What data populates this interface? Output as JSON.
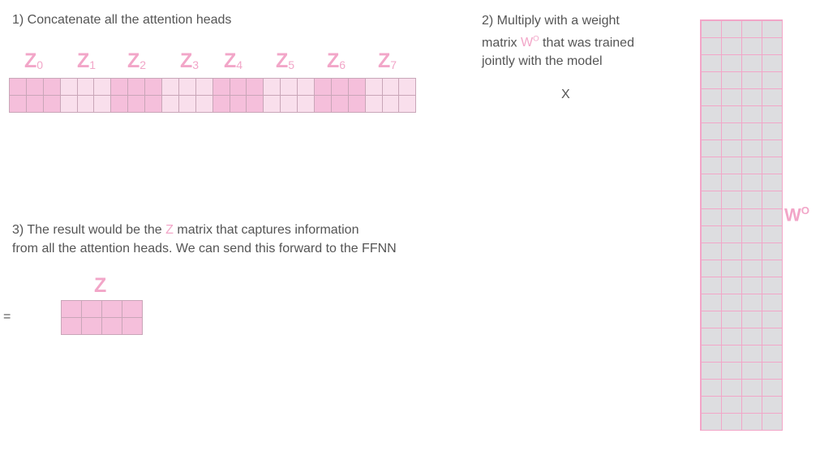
{
  "step1": {
    "text": "1) Concatenate all the attention heads"
  },
  "step2": {
    "line1": "2) Multiply with a weight",
    "line2_before": "matrix ",
    "symbol": "W",
    "symbol_sup": "O",
    "line2_after": " that was trained",
    "line3": "jointly with the model"
  },
  "step3": {
    "line1_before": "3) The result would be the ",
    "symbol": "Z",
    "line1_after": " matrix that captures information",
    "line2": "from all the attention heads. We can send this forward to the FFNN"
  },
  "heads": [
    {
      "letter": "Z",
      "sub": "0"
    },
    {
      "letter": "Z",
      "sub": "1"
    },
    {
      "letter": "Z",
      "sub": "2"
    },
    {
      "letter": "Z",
      "sub": "3"
    },
    {
      "letter": "Z",
      "sub": "4"
    },
    {
      "letter": "Z",
      "sub": "5"
    },
    {
      "letter": "Z",
      "sub": "6"
    },
    {
      "letter": "Z",
      "sub": "7"
    }
  ],
  "operators": {
    "times": "X",
    "equals": "="
  },
  "wo_matrix": {
    "letter": "W",
    "sup": "O"
  },
  "z_matrix": {
    "label": "Z"
  },
  "colors": {
    "accent_pink": "#f2a6c8",
    "head_dark": "#f5bfdb",
    "head_light": "#f9dfec",
    "wo_fill": "#dddde0",
    "text": "#555555"
  }
}
